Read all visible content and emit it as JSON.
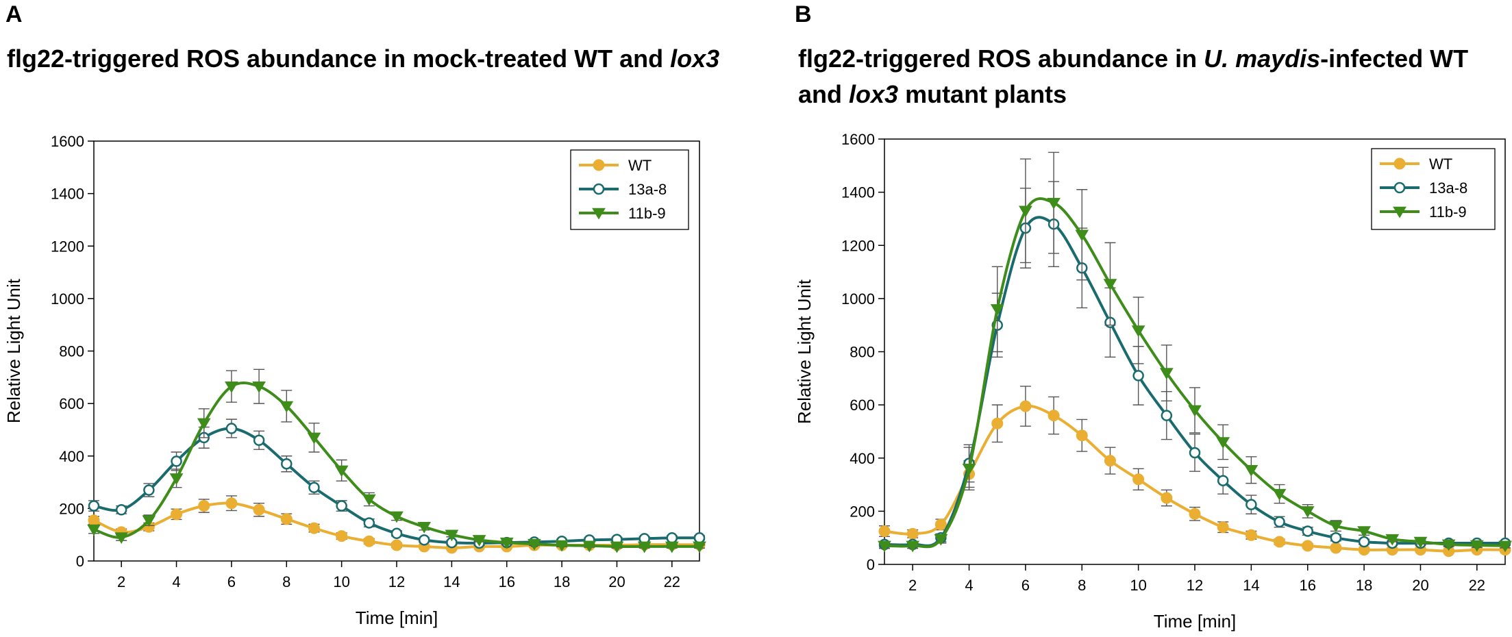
{
  "figure": {
    "panel_a": {
      "letter": "A",
      "title_pre": "flg22-triggered ROS abundance in mock-treated WT and ",
      "title_italic": "lox3"
    },
    "panel_b": {
      "letter": "B",
      "title_pre": "flg22-triggered ROS abundance in ",
      "title_italic": "U. maydis",
      "title_post": "-infected WT",
      "title_line2_italic": "lox3",
      "title_line2_pre": "and ",
      "title_line2_post": " mutant plants"
    }
  },
  "colors": {
    "WT": "#EAAE32",
    "13a-8": "#1A6B6E",
    "11b-9": "#3E8C1A",
    "error": "#555555",
    "axis": "#000000"
  },
  "chart_data": [
    {
      "id": "A",
      "type": "line",
      "xlabel": "Time [min]",
      "ylabel": "Relative Light Unit",
      "xlim": [
        1,
        23
      ],
      "ylim": [
        0,
        1600
      ],
      "xticks": [
        2,
        4,
        6,
        8,
        10,
        12,
        14,
        16,
        18,
        20,
        22
      ],
      "yticks": [
        0,
        200,
        400,
        600,
        800,
        1000,
        1200,
        1400,
        1600
      ],
      "legend_position": "top-right",
      "x": [
        1,
        2,
        3,
        4,
        5,
        6,
        7,
        8,
        9,
        10,
        11,
        12,
        13,
        14,
        15,
        16,
        17,
        18,
        19,
        20,
        21,
        22,
        23
      ],
      "series": [
        {
          "name": "WT",
          "marker": "circle-filled",
          "values": [
            155,
            110,
            130,
            178,
            210,
            220,
            195,
            160,
            125,
            95,
            75,
            60,
            55,
            50,
            55,
            55,
            60,
            60,
            60,
            60,
            62,
            62,
            62
          ],
          "errors": [
            15,
            12,
            15,
            20,
            25,
            28,
            25,
            20,
            15,
            12,
            10,
            8,
            7,
            6,
            6,
            6,
            6,
            6,
            6,
            6,
            6,
            6,
            6
          ]
        },
        {
          "name": "13a-8",
          "marker": "circle-open",
          "values": [
            210,
            195,
            270,
            380,
            470,
            505,
            460,
            370,
            280,
            210,
            145,
            105,
            80,
            70,
            68,
            70,
            72,
            75,
            80,
            82,
            85,
            88,
            88
          ],
          "errors": [
            20,
            15,
            25,
            35,
            40,
            35,
            35,
            30,
            25,
            20,
            15,
            10,
            8,
            8,
            8,
            8,
            8,
            8,
            8,
            8,
            8,
            8,
            8
          ]
        },
        {
          "name": "11b-9",
          "marker": "triangle-down",
          "values": [
            120,
            90,
            155,
            315,
            525,
            665,
            665,
            590,
            470,
            345,
            235,
            170,
            130,
            100,
            80,
            70,
            65,
            60,
            58,
            55,
            55,
            55,
            55
          ],
          "errors": [
            15,
            12,
            20,
            35,
            55,
            60,
            65,
            60,
            55,
            40,
            25,
            15,
            12,
            8,
            7,
            6,
            6,
            6,
            6,
            6,
            6,
            6,
            6
          ]
        }
      ]
    },
    {
      "id": "B",
      "type": "line",
      "xlabel": "Time [min]",
      "ylabel": "Relative Light Unit",
      "xlim": [
        1,
        23
      ],
      "ylim": [
        0,
        1600
      ],
      "xticks": [
        2,
        4,
        6,
        8,
        10,
        12,
        14,
        16,
        18,
        20,
        22
      ],
      "yticks": [
        0,
        200,
        400,
        600,
        800,
        1000,
        1200,
        1400,
        1600
      ],
      "legend_position": "top-right",
      "x": [
        1,
        2,
        3,
        4,
        5,
        6,
        7,
        8,
        9,
        10,
        11,
        12,
        13,
        14,
        15,
        16,
        17,
        18,
        19,
        20,
        21,
        22,
        23
      ],
      "series": [
        {
          "name": "WT",
          "marker": "circle-filled",
          "values": [
            125,
            115,
            150,
            340,
            530,
            595,
            560,
            485,
            390,
            320,
            250,
            190,
            140,
            110,
            85,
            70,
            62,
            55,
            55,
            55,
            50,
            55,
            55
          ],
          "errors": [
            20,
            15,
            20,
            50,
            70,
            75,
            70,
            60,
            50,
            40,
            30,
            25,
            20,
            15,
            10,
            8,
            7,
            6,
            6,
            6,
            6,
            6,
            6
          ]
        },
        {
          "name": "13a-8",
          "marker": "circle-open",
          "values": [
            75,
            75,
            100,
            380,
            900,
            1265,
            1280,
            1115,
            910,
            710,
            560,
            420,
            315,
            225,
            160,
            125,
            100,
            85,
            80,
            80,
            80,
            80,
            80
          ],
          "errors": [
            10,
            10,
            15,
            70,
            120,
            150,
            160,
            150,
            130,
            110,
            90,
            70,
            50,
            35,
            20,
            15,
            12,
            10,
            8,
            8,
            8,
            8,
            8
          ]
        },
        {
          "name": "11b-9",
          "marker": "triangle-down",
          "values": [
            70,
            70,
            95,
            360,
            960,
            1330,
            1360,
            1240,
            1055,
            880,
            720,
            580,
            460,
            355,
            265,
            200,
            145,
            125,
            95,
            85,
            75,
            72,
            70
          ],
          "errors": [
            10,
            10,
            15,
            80,
            160,
            195,
            190,
            170,
            155,
            125,
            105,
            85,
            65,
            50,
            35,
            25,
            20,
            15,
            10,
            8,
            8,
            8,
            8
          ]
        }
      ]
    }
  ]
}
